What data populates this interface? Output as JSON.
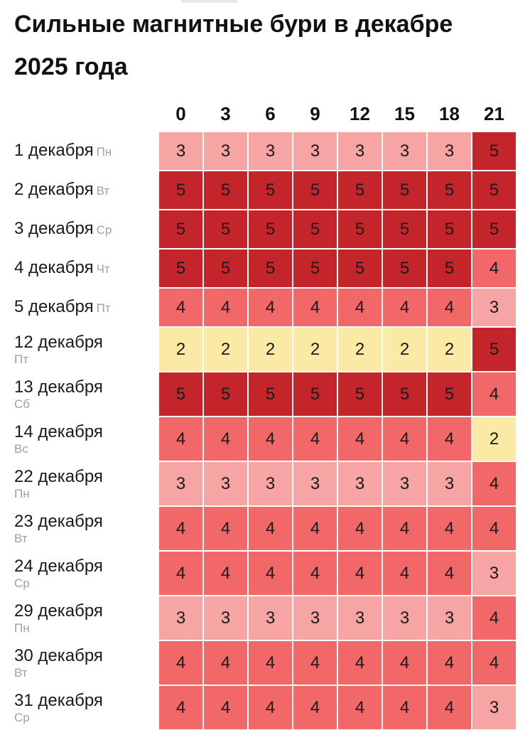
{
  "title": "Сильные магнитные бури в декабре 2025 года",
  "colors": {
    "level_2": "#fbeaa5",
    "level_3": "#f7a4a4",
    "level_4": "#f26767",
    "level_5": "#c4252a"
  },
  "chart_data": {
    "type": "heatmap",
    "title": "Сильные магнитные бури в декабре 2025 года",
    "x": [
      "0",
      "3",
      "6",
      "9",
      "12",
      "15",
      "18",
      "21"
    ],
    "rows": [
      {
        "date": "1 декабря",
        "weekday": "Пн",
        "values": [
          3,
          3,
          3,
          3,
          3,
          3,
          3,
          5
        ]
      },
      {
        "date": "2 декабря",
        "weekday": "Вт",
        "values": [
          5,
          5,
          5,
          5,
          5,
          5,
          5,
          5
        ]
      },
      {
        "date": "3 декабря",
        "weekday": "Ср",
        "values": [
          5,
          5,
          5,
          5,
          5,
          5,
          5,
          5
        ]
      },
      {
        "date": "4 декабря",
        "weekday": "Чт",
        "values": [
          5,
          5,
          5,
          5,
          5,
          5,
          5,
          4
        ]
      },
      {
        "date": "5 декабря",
        "weekday": "Пт",
        "values": [
          4,
          4,
          4,
          4,
          4,
          4,
          4,
          3
        ]
      },
      {
        "date": "12 декабря",
        "weekday": "Пт",
        "values": [
          2,
          2,
          2,
          2,
          2,
          2,
          2,
          5
        ]
      },
      {
        "date": "13 декабря",
        "weekday": "Сб",
        "values": [
          5,
          5,
          5,
          5,
          5,
          5,
          5,
          4
        ]
      },
      {
        "date": "14 декабря",
        "weekday": "Вс",
        "values": [
          4,
          4,
          4,
          4,
          4,
          4,
          4,
          2
        ]
      },
      {
        "date": "22 декабря",
        "weekday": "Пн",
        "values": [
          3,
          3,
          3,
          3,
          3,
          3,
          3,
          4
        ]
      },
      {
        "date": "23 декабря",
        "weekday": "Вт",
        "values": [
          4,
          4,
          4,
          4,
          4,
          4,
          4,
          4
        ]
      },
      {
        "date": "24 декабря",
        "weekday": "Ср",
        "values": [
          4,
          4,
          4,
          4,
          4,
          4,
          4,
          3
        ]
      },
      {
        "date": "29 декабря",
        "weekday": "Пн",
        "values": [
          3,
          3,
          3,
          3,
          3,
          3,
          3,
          4
        ]
      },
      {
        "date": "30 декабря",
        "weekday": "Вт",
        "values": [
          4,
          4,
          4,
          4,
          4,
          4,
          4,
          4
        ]
      },
      {
        "date": "31 декабря",
        "weekday": "Ср",
        "values": [
          4,
          4,
          4,
          4,
          4,
          4,
          4,
          3
        ]
      }
    ]
  }
}
